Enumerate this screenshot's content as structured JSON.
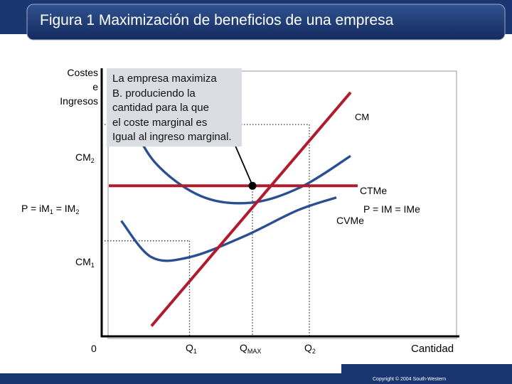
{
  "title": "Figura 1 Maximización de beneficios de una empresa",
  "copyright": "Copyright © 2004 South-Western",
  "colors": {
    "title_bar": "#1a3670",
    "cm_curve": "#b01c2e",
    "price_line": "#b01c2e",
    "cost_curves": "#2a4f92",
    "callout_bg": "#dcdde3"
  },
  "chart_data": {
    "type": "line",
    "ylabel": [
      "Costes",
      "e",
      "Ingresos"
    ],
    "xlabel": "Cantidad",
    "origin_label": "0",
    "ylim": [
      0,
      10
    ],
    "xlim": [
      0,
      10
    ],
    "grid": false,
    "y_ticks": [
      {
        "id": "cm2",
        "value": 8.16,
        "base": "CM",
        "sub": "2"
      },
      {
        "id": "price",
        "value": 5.8,
        "text": "P = iM",
        "sub1": "1",
        "mid": " = IM",
        "sub2": "2"
      },
      {
        "id": "cm1",
        "value": 3.68,
        "base": "CM",
        "sub": "1"
      }
    ],
    "x_ticks": [
      {
        "id": "q1",
        "value": 2.47,
        "base": "Q",
        "sub": "1"
      },
      {
        "id": "qmax",
        "value": 4.24,
        "base": "Q",
        "sub": "MAX"
      },
      {
        "id": "q2",
        "value": 5.84,
        "base": "Q",
        "sub": "2"
      }
    ],
    "series": [
      {
        "id": "cm",
        "name": "CM",
        "color": "#b01c2e",
        "points": [
          [
            1.4,
            0.4
          ],
          [
            2.47,
            3.68
          ],
          [
            4.24,
            5.8
          ],
          [
            5.84,
            8.16
          ],
          [
            7.0,
            9.4
          ]
        ]
      },
      {
        "id": "price",
        "name": "P = IM = IMe",
        "color": "#b01c2e",
        "points": [
          [
            0.2,
            5.8
          ],
          [
            7.2,
            5.8
          ]
        ]
      },
      {
        "id": "ctme",
        "name": "CTMe",
        "color": "#2a4f92",
        "points": [
          [
            0.7,
            8.6
          ],
          [
            1.5,
            6.7
          ],
          [
            2.8,
            5.4
          ],
          [
            4.2,
            5.15
          ],
          [
            5.6,
            5.75
          ],
          [
            7.0,
            6.95
          ]
        ]
      },
      {
        "id": "cvme",
        "name": "CVMe",
        "color": "#2a4f92",
        "points": [
          [
            0.55,
            4.45
          ],
          [
            1.4,
            3.05
          ],
          [
            2.47,
            3.05
          ],
          [
            4.0,
            3.85
          ],
          [
            5.5,
            4.85
          ],
          [
            6.6,
            5.35
          ]
        ]
      }
    ],
    "max_point": {
      "x": 4.24,
      "y": 5.8
    },
    "annotation": {
      "lines": [
        "La empresa maximiza",
        "B. produciendo la",
        "cantidad para la que",
        "el coste marginal es",
        "Igual al ingreso marginal."
      ],
      "arrow_from": {
        "x": 3.33,
        "y": 8.7
      },
      "arrow_to": {
        "x": 4.24,
        "y": 5.8
      }
    }
  }
}
